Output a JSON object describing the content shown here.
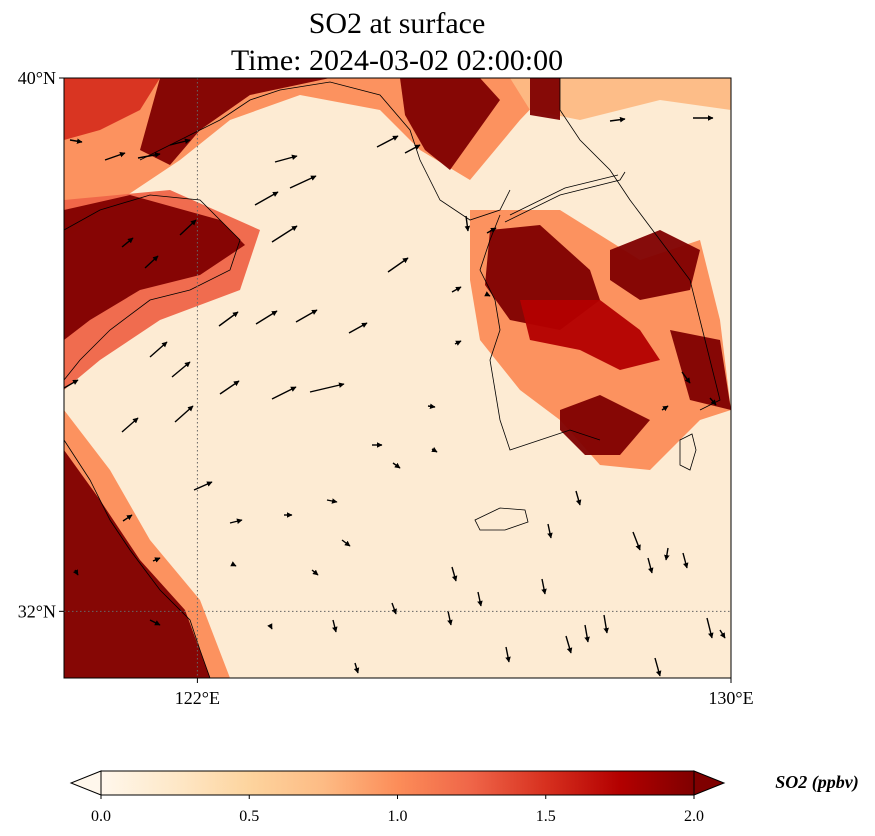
{
  "title": {
    "line1": "SO2 at surface",
    "line2": "Time: 2024-03-02 02:00:00"
  },
  "map": {
    "lon_range": [
      120,
      130
    ],
    "lat_range": [
      31,
      40
    ],
    "lat_ticks": [
      {
        "value": 40,
        "label": "40°N"
      },
      {
        "value": 32,
        "label": "32°N"
      }
    ],
    "lon_ticks": [
      {
        "value": 122,
        "label": "122°E"
      },
      {
        "value": 130,
        "label": "130°E"
      }
    ],
    "gridlines": {
      "lat": [
        32
      ],
      "lon": [
        122
      ]
    },
    "field": "SO2 surface concentration (ppbv)",
    "wind_vectors": "present"
  },
  "colorbar": {
    "label": "SO2 (ppbv)",
    "min": 0.0,
    "max": 2.0,
    "ticks": [
      "0.0",
      "0.5",
      "1.0",
      "1.5",
      "2.0"
    ],
    "colormap": "OrRd",
    "extend": "both",
    "colors": [
      "#fff7ec",
      "#fee8c8",
      "#fdd49e",
      "#fdbb84",
      "#fc8d59",
      "#ef6548",
      "#d7301f",
      "#b30000",
      "#7f0000"
    ]
  }
}
